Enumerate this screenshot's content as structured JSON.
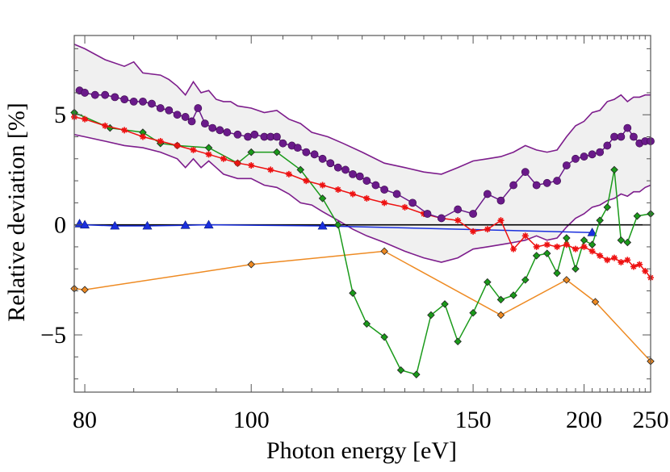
{
  "chart_data": {
    "type": "line",
    "xlabel": "Photon energy [eV]",
    "ylabel": "Relative deviation [%]",
    "x_scale": "reciprocal",
    "xlim": [
      79,
      250
    ],
    "ylim": [
      -7.6,
      8.6
    ],
    "x_ticks": [
      80,
      100,
      150,
      200,
      250
    ],
    "y_ticks": [
      -5,
      0,
      5
    ],
    "x_tick_labels": [
      "80",
      "100",
      "150",
      "200",
      "250"
    ],
    "y_tick_labels": [
      "−5",
      "0",
      "5"
    ],
    "zero_line": 0,
    "grid": false,
    "band": {
      "color": "#f0f0f0",
      "line_color": "#7d1d8c",
      "upper": [
        [
          79,
          8.2
        ],
        [
          80,
          8.0
        ],
        [
          82,
          7.5
        ],
        [
          84,
          7.2
        ],
        [
          85,
          7.4
        ],
        [
          86,
          6.9
        ],
        [
          88,
          6.8
        ],
        [
          89,
          6.6
        ],
        [
          90,
          6.3
        ],
        [
          91,
          5.9
        ],
        [
          92,
          6.5
        ],
        [
          93,
          6.0
        ],
        [
          94,
          6.1
        ],
        [
          95,
          5.7
        ],
        [
          96,
          5.6
        ],
        [
          97,
          5.6
        ],
        [
          98,
          5.4
        ],
        [
          100,
          5.3
        ],
        [
          102,
          5.1
        ],
        [
          104,
          5.2
        ],
        [
          106,
          4.8
        ],
        [
          108,
          4.6
        ],
        [
          110,
          4.2
        ],
        [
          113,
          4.0
        ],
        [
          116,
          3.7
        ],
        [
          120,
          3.3
        ],
        [
          125,
          2.8
        ],
        [
          130,
          2.6
        ],
        [
          135,
          2.4
        ],
        [
          140,
          2.3
        ],
        [
          145,
          2.6
        ],
        [
          150,
          2.9
        ],
        [
          155,
          3.0
        ],
        [
          160,
          3.1
        ],
        [
          165,
          3.3
        ],
        [
          170,
          3.6
        ],
        [
          175,
          3.4
        ],
        [
          180,
          3.3
        ],
        [
          185,
          3.4
        ],
        [
          190,
          4.0
        ],
        [
          195,
          4.5
        ],
        [
          200,
          4.7
        ],
        [
          205,
          5.1
        ],
        [
          210,
          5.2
        ],
        [
          215,
          5.6
        ],
        [
          220,
          5.7
        ],
        [
          225,
          5.9
        ],
        [
          230,
          5.6
        ],
        [
          235,
          5.8
        ],
        [
          240,
          5.8
        ],
        [
          245,
          5.9
        ],
        [
          250,
          5.9
        ]
      ],
      "lower": [
        [
          79,
          4.1
        ],
        [
          80,
          4.0
        ],
        [
          82,
          3.8
        ],
        [
          84,
          3.6
        ],
        [
          86,
          3.5
        ],
        [
          88,
          3.3
        ],
        [
          90,
          3.0
        ],
        [
          91,
          2.6
        ],
        [
          92,
          3.0
        ],
        [
          93,
          2.6
        ],
        [
          94,
          2.9
        ],
        [
          95,
          2.6
        ],
        [
          96,
          2.3
        ],
        [
          98,
          2.1
        ],
        [
          100,
          2.1
        ],
        [
          102,
          1.8
        ],
        [
          104,
          1.7
        ],
        [
          106,
          1.4
        ],
        [
          108,
          1.0
        ],
        [
          110,
          0.9
        ],
        [
          112,
          0.6
        ],
        [
          115,
          0.2
        ],
        [
          118,
          -0.2
        ],
        [
          121,
          -0.5
        ],
        [
          125,
          -0.8
        ],
        [
          130,
          -1.2
        ],
        [
          135,
          -1.5
        ],
        [
          140,
          -1.7
        ],
        [
          145,
          -1.5
        ],
        [
          150,
          -1.1
        ],
        [
          155,
          -1.0
        ],
        [
          160,
          -0.9
        ],
        [
          165,
          -0.8
        ],
        [
          170,
          -0.7
        ],
        [
          175,
          -0.5
        ],
        [
          180,
          -0.7
        ],
        [
          185,
          -0.6
        ],
        [
          190,
          -0.1
        ],
        [
          195,
          0.3
        ],
        [
          200,
          0.5
        ],
        [
          205,
          0.8
        ],
        [
          210,
          0.9
        ],
        [
          215,
          1.1
        ],
        [
          220,
          1.2
        ],
        [
          225,
          1.4
        ],
        [
          230,
          1.3
        ],
        [
          235,
          1.5
        ],
        [
          240,
          1.5
        ],
        [
          245,
          1.7
        ],
        [
          250,
          1.8
        ]
      ]
    },
    "series": [
      {
        "color": "#6a1a8a",
        "marker": "circle",
        "points": [
          [
            79.5,
            6.1
          ],
          [
            80,
            6.0
          ],
          [
            81,
            5.9
          ],
          [
            82,
            5.9
          ],
          [
            83,
            5.8
          ],
          [
            84,
            5.7
          ],
          [
            85,
            5.6
          ],
          [
            86,
            5.6
          ],
          [
            87,
            5.5
          ],
          [
            88,
            5.3
          ],
          [
            89,
            5.2
          ],
          [
            90,
            5.0
          ],
          [
            91,
            4.9
          ],
          [
            91.8,
            4.7
          ],
          [
            92.6,
            5.3
          ],
          [
            93.5,
            4.6
          ],
          [
            94.5,
            4.4
          ],
          [
            95.5,
            4.3
          ],
          [
            96.5,
            4.2
          ],
          [
            98,
            4.1
          ],
          [
            99.5,
            4.0
          ],
          [
            100.5,
            4.1
          ],
          [
            102,
            4.0
          ],
          [
            103,
            4.0
          ],
          [
            104,
            4.0
          ],
          [
            105,
            3.7
          ],
          [
            106.5,
            3.6
          ],
          [
            107.5,
            3.5
          ],
          [
            109,
            3.3
          ],
          [
            110.5,
            3.2
          ],
          [
            112,
            3.0
          ],
          [
            113.5,
            2.8
          ],
          [
            115,
            2.6
          ],
          [
            116.5,
            2.5
          ],
          [
            118,
            2.3
          ],
          [
            119.5,
            2.2
          ],
          [
            121,
            2.0
          ],
          [
            123,
            1.8
          ],
          [
            125,
            1.6
          ],
          [
            128,
            1.4
          ],
          [
            132,
            1.0
          ],
          [
            136,
            0.5
          ],
          [
            140,
            0.3
          ],
          [
            145,
            0.7
          ],
          [
            150,
            0.5
          ],
          [
            155,
            1.4
          ],
          [
            160,
            1.1
          ],
          [
            165,
            1.8
          ],
          [
            170,
            2.4
          ],
          [
            175,
            1.8
          ],
          [
            180,
            1.9
          ],
          [
            185,
            2.0
          ],
          [
            190,
            2.7
          ],
          [
            195,
            3.0
          ],
          [
            200,
            3.1
          ],
          [
            205,
            3.2
          ],
          [
            210,
            3.3
          ],
          [
            215,
            3.6
          ],
          [
            220,
            4.0
          ],
          [
            225,
            4.0
          ],
          [
            230,
            4.4
          ],
          [
            235,
            4.0
          ],
          [
            240,
            3.7
          ],
          [
            245,
            3.8
          ],
          [
            250,
            3.8
          ]
        ]
      },
      {
        "color": "#ee1111",
        "marker": "star",
        "points": [
          [
            79,
            4.9
          ],
          [
            80,
            4.8
          ],
          [
            82,
            4.5
          ],
          [
            84,
            4.3
          ],
          [
            86,
            4.0
          ],
          [
            88,
            3.8
          ],
          [
            90,
            3.6
          ],
          [
            92,
            3.4
          ],
          [
            94,
            3.2
          ],
          [
            96,
            3.0
          ],
          [
            98,
            2.8
          ],
          [
            100,
            2.7
          ],
          [
            103,
            2.5
          ],
          [
            106,
            2.3
          ],
          [
            109,
            2.0
          ],
          [
            112,
            1.8
          ],
          [
            115,
            1.6
          ],
          [
            118,
            1.4
          ],
          [
            121,
            1.2
          ],
          [
            125,
            1.0
          ],
          [
            130,
            0.8
          ],
          [
            135,
            0.5
          ],
          [
            140,
            0.3
          ],
          [
            145,
            0.2
          ],
          [
            150,
            -0.3
          ],
          [
            155,
            -0.2
          ],
          [
            160,
            0.2
          ],
          [
            165,
            -1.1
          ],
          [
            170,
            -0.5
          ],
          [
            175,
            -1.0
          ],
          [
            180,
            -0.9
          ],
          [
            185,
            -1.0
          ],
          [
            190,
            -0.9
          ],
          [
            195,
            -1.1
          ],
          [
            200,
            -1.0
          ],
          [
            205,
            -1.2
          ],
          [
            210,
            -1.4
          ],
          [
            215,
            -1.6
          ],
          [
            220,
            -1.5
          ],
          [
            225,
            -1.7
          ],
          [
            230,
            -1.6
          ],
          [
            235,
            -1.9
          ],
          [
            240,
            -1.8
          ],
          [
            245,
            -2.1
          ],
          [
            250,
            -2.4
          ]
        ]
      },
      {
        "color": "#1a9a1a",
        "marker": "diamond",
        "points": [
          [
            79,
            5.1
          ],
          [
            82.5,
            4.4
          ],
          [
            86,
            4.2
          ],
          [
            88,
            3.7
          ],
          [
            90,
            3.6
          ],
          [
            94,
            3.5
          ],
          [
            98,
            2.8
          ],
          [
            100,
            3.3
          ],
          [
            104,
            3.3
          ],
          [
            108,
            2.5
          ],
          [
            112,
            1.2
          ],
          [
            115,
            0.0
          ],
          [
            118,
            -3.1
          ],
          [
            121,
            -4.5
          ],
          [
            125,
            -5.1
          ],
          [
            129,
            -6.6
          ],
          [
            133,
            -6.8
          ],
          [
            137,
            -4.1
          ],
          [
            141,
            -3.6
          ],
          [
            145,
            -5.3
          ],
          [
            150,
            -4.0
          ],
          [
            155,
            -2.6
          ],
          [
            160,
            -3.4
          ],
          [
            165,
            -3.2
          ],
          [
            170,
            -2.5
          ],
          [
            175,
            -1.4
          ],
          [
            180,
            -1.3
          ],
          [
            185,
            -2.2
          ],
          [
            190,
            -0.6
          ],
          [
            195,
            -2.0
          ],
          [
            200,
            -0.7
          ],
          [
            205,
            -0.9
          ],
          [
            210,
            0.2
          ],
          [
            215,
            0.8
          ],
          [
            220,
            2.5
          ],
          [
            225,
            -0.7
          ],
          [
            230,
            -0.8
          ],
          [
            238,
            0.4
          ],
          [
            250,
            0.5
          ]
        ]
      },
      {
        "color": "#ee8a22",
        "marker": "diamond",
        "points": [
          [
            79,
            -2.9
          ],
          [
            80,
            -2.95
          ],
          [
            100,
            -1.8
          ],
          [
            125,
            -1.2
          ],
          [
            160,
            -4.1
          ],
          [
            190,
            -2.5
          ],
          [
            207,
            -3.5
          ],
          [
            250,
            -6.2
          ]
        ]
      },
      {
        "color": "#1a2fdd",
        "marker": "triangle",
        "points": [
          [
            79.5,
            0.05
          ],
          [
            80,
            0.0
          ],
          [
            83,
            -0.05
          ],
          [
            86.5,
            -0.05
          ],
          [
            91,
            -0.02
          ],
          [
            94,
            0.0
          ],
          [
            112,
            -0.05
          ],
          [
            205,
            -0.35
          ]
        ]
      }
    ]
  }
}
